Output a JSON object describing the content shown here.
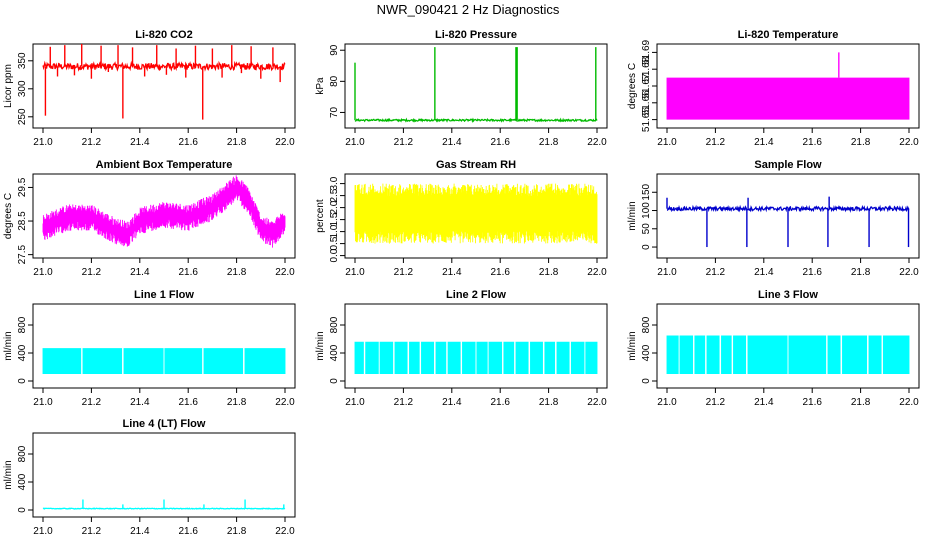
{
  "figure_title": "NWR_090421  2 Hz Diagnostics",
  "chart_data": [
    {
      "type": "line",
      "title": "Li-820 CO2",
      "ylabel": "Licor ppm",
      "xlim": [
        21.0,
        22.0
      ],
      "ylim": [
        230,
        380
      ],
      "x_ticks": [
        "21.0",
        "21.2",
        "21.4",
        "21.6",
        "21.8",
        "22.0"
      ],
      "y_ticks": [
        250,
        300,
        350
      ],
      "color": "#ff0000",
      "baseline": 340,
      "band": [
        334,
        346
      ],
      "spikes": [
        {
          "x": 21.01,
          "y": 252
        },
        {
          "x": 21.03,
          "y": 375
        },
        {
          "x": 21.06,
          "y": 322
        },
        {
          "x": 21.09,
          "y": 378
        },
        {
          "x": 21.13,
          "y": 324
        },
        {
          "x": 21.16,
          "y": 380
        },
        {
          "x": 21.2,
          "y": 318
        },
        {
          "x": 21.24,
          "y": 377
        },
        {
          "x": 21.27,
          "y": 330
        },
        {
          "x": 21.31,
          "y": 378
        },
        {
          "x": 21.33,
          "y": 247
        },
        {
          "x": 21.37,
          "y": 374
        },
        {
          "x": 21.42,
          "y": 322
        },
        {
          "x": 21.47,
          "y": 378
        },
        {
          "x": 21.51,
          "y": 325
        },
        {
          "x": 21.55,
          "y": 372
        },
        {
          "x": 21.59,
          "y": 320
        },
        {
          "x": 21.63,
          "y": 377
        },
        {
          "x": 21.66,
          "y": 245
        },
        {
          "x": 21.7,
          "y": 372
        },
        {
          "x": 21.74,
          "y": 320
        },
        {
          "x": 21.78,
          "y": 378
        },
        {
          "x": 21.82,
          "y": 328
        },
        {
          "x": 21.86,
          "y": 376
        },
        {
          "x": 21.9,
          "y": 318
        },
        {
          "x": 21.95,
          "y": 374
        },
        {
          "x": 21.98,
          "y": 312
        }
      ]
    },
    {
      "type": "line",
      "title": "Li-820 Pressure",
      "ylabel": "kPa",
      "xlim": [
        21.0,
        22.0
      ],
      "ylim": [
        65,
        92
      ],
      "x_ticks": [
        "21.0",
        "21.2",
        "21.4",
        "21.6",
        "21.8",
        "22.0"
      ],
      "y_ticks": [
        70,
        80,
        90
      ],
      "color": "#00bb00",
      "baseline": 67.5,
      "band": [
        67.2,
        67.8
      ],
      "spikes": [
        {
          "x": 21.0,
          "y": 86
        },
        {
          "x": 21.33,
          "y": 91
        },
        {
          "x": 21.665,
          "y": 91
        },
        {
          "x": 21.67,
          "y": 91
        },
        {
          "x": 21.995,
          "y": 91
        }
      ]
    },
    {
      "type": "area",
      "title": "Li-820 Temperature",
      "ylabel": "degrees C",
      "xlim": [
        21.0,
        22.0
      ],
      "ylim": [
        51.645,
        51.695
      ],
      "x_ticks": [
        "21.0",
        "21.2",
        "21.4",
        "21.6",
        "21.8",
        "22.0"
      ],
      "y_ticks": [
        "51.65",
        "51.66",
        "51.67",
        "51.68",
        "51.69"
      ],
      "color": "#ff00ff",
      "band": [
        51.65,
        51.675
      ],
      "spikes": [
        {
          "x": 21.71,
          "y": 51.69
        }
      ]
    },
    {
      "type": "line",
      "title": "Ambient Box Temperature",
      "ylabel": "degrees C",
      "xlim": [
        21.0,
        22.0
      ],
      "ylim": [
        27.4,
        29.9
      ],
      "x_ticks": [
        "21.0",
        "21.2",
        "21.4",
        "21.6",
        "21.8",
        "22.0"
      ],
      "y_ticks": [
        "27.5",
        "28.5",
        "29.5"
      ],
      "color": "#ff00ff",
      "trend": [
        {
          "x": 21.0,
          "y": 28.3
        },
        {
          "x": 21.1,
          "y": 28.6
        },
        {
          "x": 21.2,
          "y": 28.6
        },
        {
          "x": 21.3,
          "y": 28.2
        },
        {
          "x": 21.35,
          "y": 28.1
        },
        {
          "x": 21.4,
          "y": 28.5
        },
        {
          "x": 21.5,
          "y": 28.7
        },
        {
          "x": 21.6,
          "y": 28.6
        },
        {
          "x": 21.7,
          "y": 28.9
        },
        {
          "x": 21.8,
          "y": 29.5
        },
        {
          "x": 21.85,
          "y": 29.1
        },
        {
          "x": 21.9,
          "y": 28.3
        },
        {
          "x": 21.95,
          "y": 28.1
        },
        {
          "x": 22.0,
          "y": 28.5
        }
      ],
      "spread": 0.4
    },
    {
      "type": "area",
      "title": "Gas Stream RH",
      "ylabel": "percent",
      "xlim": [
        21.0,
        22.0
      ],
      "ylim": [
        -0.1,
        3.4
      ],
      "x_ticks": [
        "21.0",
        "21.2",
        "21.4",
        "21.6",
        "21.8",
        "22.0"
      ],
      "y_ticks": [
        "0.0",
        "0.5",
        "1.0",
        "1.5",
        "2.0",
        "2.5",
        "3.0"
      ],
      "color": "#ffff00",
      "band": [
        0.5,
        3.0
      ],
      "spread": 0.35
    },
    {
      "type": "line",
      "title": "Sample Flow",
      "ylabel": "ml/min",
      "xlim": [
        21.0,
        22.0
      ],
      "ylim": [
        -30,
        200
      ],
      "x_ticks": [
        "21.0",
        "21.2",
        "21.4",
        "21.6",
        "21.8",
        "22.0"
      ],
      "y_ticks": [
        0,
        50,
        100,
        150
      ],
      "color": "#0000cc",
      "baseline": 105,
      "band": [
        100,
        110
      ],
      "spikes": [
        {
          "x": 21.0,
          "y": 135
        },
        {
          "x": 21.165,
          "y": 0
        },
        {
          "x": 21.33,
          "y": 0
        },
        {
          "x": 21.335,
          "y": 135
        },
        {
          "x": 21.5,
          "y": 0
        },
        {
          "x": 21.665,
          "y": 0
        },
        {
          "x": 21.67,
          "y": 138
        },
        {
          "x": 21.835,
          "y": 0
        },
        {
          "x": 21.998,
          "y": 0
        }
      ]
    },
    {
      "type": "area",
      "title": "Line 1 Flow",
      "ylabel": "ml/min",
      "xlim": [
        21.0,
        22.0
      ],
      "ylim": [
        -100,
        1100
      ],
      "x_ticks": [
        "21.0",
        "21.2",
        "21.4",
        "21.6",
        "21.8",
        "22.0"
      ],
      "y_ticks": [
        0,
        400,
        800
      ],
      "color": "#00ffff",
      "band": [
        100,
        470
      ],
      "gaps": [
        21.16,
        21.33,
        21.5,
        21.66,
        21.83
      ]
    },
    {
      "type": "area",
      "title": "Line 2 Flow",
      "ylabel": "ml/min",
      "xlim": [
        21.0,
        22.0
      ],
      "ylim": [
        -100,
        1100
      ],
      "x_ticks": [
        "21.0",
        "21.2",
        "21.4",
        "21.6",
        "21.8",
        "22.0"
      ],
      "y_ticks": [
        0,
        400,
        800
      ],
      "color": "#00ffff",
      "band": [
        100,
        560
      ],
      "gaps": [
        21.04,
        21.1,
        21.16,
        21.22,
        21.27,
        21.33,
        21.38,
        21.44,
        21.5,
        21.55,
        21.61,
        21.66,
        21.72,
        21.78,
        21.83,
        21.89,
        21.95
      ]
    },
    {
      "type": "area",
      "title": "Line 3 Flow",
      "ylabel": "ml/min",
      "xlim": [
        21.0,
        22.0
      ],
      "ylim": [
        -100,
        1100
      ],
      "x_ticks": [
        "21.0",
        "21.2",
        "21.4",
        "21.6",
        "21.8",
        "22.0"
      ],
      "y_ticks": [
        0,
        400,
        800
      ],
      "color": "#00ffff",
      "band": [
        100,
        650
      ],
      "gaps": [
        21.05,
        21.11,
        21.16,
        21.22,
        21.27,
        21.33,
        21.5,
        21.66,
        21.72,
        21.83,
        21.89
      ]
    },
    {
      "type": "line",
      "title": "Line 4 (LT) Flow",
      "ylabel": "ml/min",
      "xlim": [
        21.0,
        22.0
      ],
      "ylim": [
        -100,
        1100
      ],
      "x_ticks": [
        "21.0",
        "21.2",
        "21.4",
        "21.6",
        "21.8",
        "22.0"
      ],
      "y_ticks": [
        0,
        400,
        800
      ],
      "color": "#00ffff",
      "baseline": 20,
      "band": [
        15,
        25
      ],
      "spikes": [
        {
          "x": 21.165,
          "y": 150
        },
        {
          "x": 21.33,
          "y": 80
        },
        {
          "x": 21.5,
          "y": 150
        },
        {
          "x": 21.665,
          "y": 80
        },
        {
          "x": 21.835,
          "y": 150
        },
        {
          "x": 21.995,
          "y": 80
        }
      ]
    }
  ]
}
